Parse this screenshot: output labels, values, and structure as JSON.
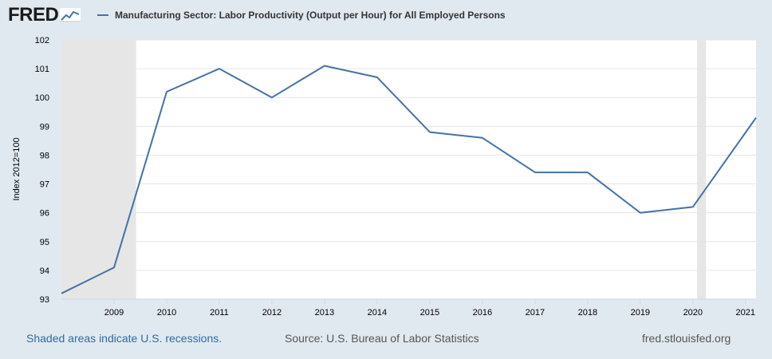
{
  "header": {
    "logo_text": "FRED",
    "legend_label": "Manufacturing Sector: Labor Productivity (Output per Hour) for All Employed Persons"
  },
  "footer": {
    "recessions_note": "Shaded areas indicate U.S. recessions.",
    "source": "Source: U.S. Bureau of Labor Statistics",
    "site": "fred.stlouisfed.org"
  },
  "colors": {
    "line": "#4572a7",
    "recession": "#e6e6e6",
    "background": "#e1e9f0",
    "legend_text": "#333333",
    "footer_link": "#2e6ba6"
  },
  "chart_data": {
    "type": "line",
    "ylabel": "Index 2012=100",
    "ylim": [
      93,
      102
    ],
    "yticks": [
      93,
      94,
      95,
      96,
      97,
      98,
      99,
      100,
      101,
      102
    ],
    "xlim": [
      2008,
      2021.2
    ],
    "xticks": [
      "2009",
      "2010",
      "2011",
      "2012",
      "2013",
      "2014",
      "2015",
      "2016",
      "2017",
      "2018",
      "2019",
      "2020",
      "2021"
    ],
    "x": [
      2008,
      2009,
      2010,
      2011,
      2012,
      2013,
      2014,
      2015,
      2016,
      2017,
      2018,
      2019,
      2020,
      2021.2
    ],
    "series": [
      {
        "values": [
          93.2,
          94.1,
          100.2,
          101.0,
          100.0,
          101.1,
          100.7,
          98.8,
          98.6,
          97.4,
          97.4,
          96.0,
          96.2,
          99.3
        ]
      }
    ],
    "recessions": [
      [
        2008,
        2009.42
      ],
      [
        2020.08,
        2020.25
      ]
    ],
    "grid": true
  }
}
